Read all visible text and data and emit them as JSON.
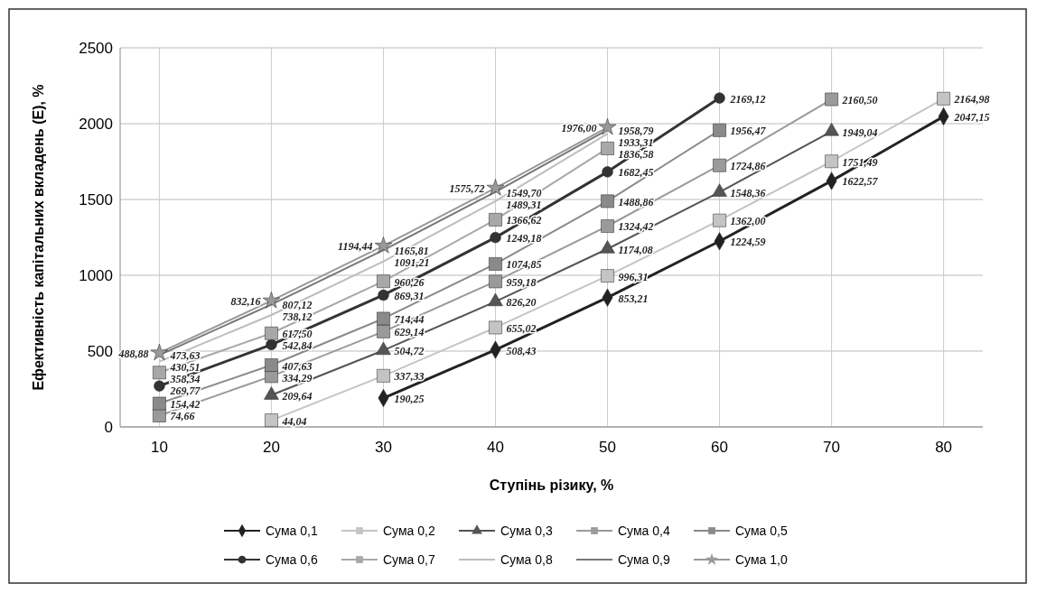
{
  "chart_data": {
    "type": "line",
    "xlabel": "Ступінь різику, %",
    "ylabel": "Ефективність капітальних вкладень (Е), %",
    "categories": [
      "10",
      "20",
      "30",
      "40",
      "50",
      "60",
      "70",
      "80"
    ],
    "ylim": [
      0,
      2500
    ],
    "yticks": [
      0,
      500,
      1000,
      1500,
      2000,
      2500
    ],
    "grid": true,
    "legend": "bottom",
    "line_style": "solid",
    "series": [
      {
        "name": "Сума 0,1",
        "color": "#222222",
        "marker": "diamond",
        "values": [
          null,
          null,
          190.25,
          508.43,
          853.21,
          1224.59,
          1622.57,
          2047.15
        ],
        "value_labels": [
          null,
          null,
          "190,25",
          "508,43",
          "853,21",
          "1224,59",
          "1622,57",
          "2047,15"
        ]
      },
      {
        "name": "Сума 0,2",
        "color": "#c4c4c4",
        "marker": "square",
        "values": [
          null,
          44.04,
          337.33,
          655.02,
          996.31,
          1362.0,
          1751.49,
          2164.98
        ],
        "value_labels": [
          null,
          "44,04",
          "337,33",
          "655,02",
          "996,31",
          "1362,00",
          "1751,49",
          "2164,98"
        ]
      },
      {
        "name": "Сума 0,3",
        "color": "#555555",
        "marker": "triangle",
        "values": [
          null,
          209.64,
          504.72,
          826.2,
          1174.08,
          1548.36,
          1949.04,
          null
        ],
        "value_labels": [
          null,
          "209,64",
          "504,72",
          "826,20",
          "1174,08",
          "1548,36",
          "1949,04",
          null
        ]
      },
      {
        "name": "Сума 0,4",
        "color": "#9a9a9a",
        "marker": "square",
        "values": [
          74.66,
          334.29,
          629.14,
          959.18,
          1324.42,
          1724.86,
          2160.5,
          null
        ],
        "value_labels": [
          "74,66",
          "334,29",
          "629,14",
          "959,18",
          "1324,42",
          "1724,86",
          "2160,50",
          null
        ]
      },
      {
        "name": "Сума 0,5",
        "color": "#8a8a8a",
        "marker": "square",
        "values": [
          154.42,
          407.63,
          714.44,
          1074.85,
          1488.86,
          1956.47,
          null,
          null
        ],
        "value_labels": [
          "154,42",
          "407,63",
          "714,44",
          "1074,85",
          "1488,86",
          "1956,47",
          null,
          null
        ]
      },
      {
        "name": "Сума 0,6",
        "color": "#333333",
        "marker": "circle",
        "values": [
          269.77,
          542.84,
          869.31,
          1249.18,
          1682.45,
          2169.12,
          null,
          null
        ],
        "value_labels": [
          "269,77",
          "542,84",
          "869,31",
          "1249,18",
          "1682,45",
          "2169,12",
          null,
          null
        ]
      },
      {
        "name": "Сума 0,7",
        "color": "#a8a8a8",
        "marker": "square",
        "values": [
          358.34,
          617.5,
          960.26,
          1366.62,
          1836.58,
          null,
          null,
          null
        ],
        "value_labels": [
          "358,34",
          "617,50",
          "960,26",
          "1366,62",
          "1836,58",
          null,
          null,
          null
        ]
      },
      {
        "name": "Сума 0,8",
        "color": "#bdbdbd",
        "marker": "none",
        "values": [
          430.51,
          738.12,
          1091.21,
          1489.31,
          1933.31,
          null,
          null,
          null
        ],
        "value_labels": [
          "430,51",
          "738,12",
          "1091,21",
          "1489,31",
          "1933,31",
          null,
          null,
          null
        ]
      },
      {
        "name": "Сума 0,9",
        "color": "#777777",
        "marker": "none",
        "values": [
          473.63,
          807.12,
          1165.81,
          1549.7,
          1958.79,
          null,
          null,
          null
        ],
        "value_labels": [
          "473,63",
          "807,12",
          "1165,81",
          "1549,70",
          "1958,79",
          null,
          null,
          null
        ]
      },
      {
        "name": "Сума 1,0",
        "color": "#999999",
        "marker": "star",
        "values": [
          488.88,
          832.16,
          1194.44,
          1575.72,
          1976.0,
          null,
          null,
          null
        ],
        "value_labels": [
          "488,88",
          "832,16",
          "1194,44",
          "1575,72",
          "1976,00",
          null,
          null,
          null
        ]
      }
    ]
  }
}
